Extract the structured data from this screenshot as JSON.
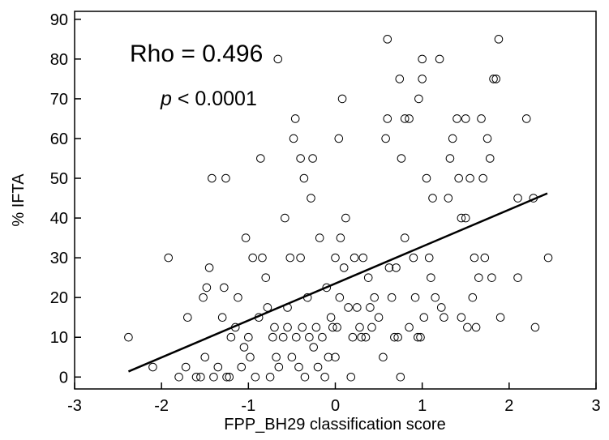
{
  "chart_data": {
    "type": "scatter",
    "xlabel": "FPP_BH29 classification score",
    "ylabel": "% IFTA",
    "xlim": [
      -3,
      3
    ],
    "ylim": [
      -3,
      92
    ],
    "xticks": [
      -3,
      -2,
      -1,
      0,
      1,
      2,
      3
    ],
    "yticks": [
      0,
      10,
      20,
      30,
      40,
      50,
      60,
      70,
      80,
      90
    ],
    "xtick_labels": [
      "-3",
      "-2",
      "-1",
      "0",
      "1",
      "2",
      "3"
    ],
    "ytick_labels": [
      "0",
      "10",
      "20",
      "30",
      "40",
      "50",
      "60",
      "70",
      "80",
      "90"
    ],
    "grid": false,
    "annotations": {
      "rho": "Rho = 0.496",
      "p_symbol": "p",
      "p_value": " < 0.0001"
    },
    "regression_line": {
      "x": [
        -2.38,
        2.44
      ],
      "y": [
        1.4,
        46.2
      ]
    },
    "points": [
      [
        -2.38,
        10
      ],
      [
        -2.1,
        2.5
      ],
      [
        -1.92,
        30
      ],
      [
        -1.8,
        0
      ],
      [
        -1.72,
        2.5
      ],
      [
        -1.7,
        15
      ],
      [
        -1.6,
        0
      ],
      [
        -1.55,
        0
      ],
      [
        -1.52,
        20
      ],
      [
        -1.5,
        5
      ],
      [
        -1.48,
        22.5
      ],
      [
        -1.42,
        50
      ],
      [
        -1.45,
        27.5
      ],
      [
        -1.4,
        0
      ],
      [
        -1.35,
        2.5
      ],
      [
        -1.3,
        15
      ],
      [
        -1.28,
        22.5
      ],
      [
        -1.26,
        50
      ],
      [
        -1.25,
        0
      ],
      [
        -1.22,
        0
      ],
      [
        -1.2,
        10
      ],
      [
        -1.15,
        12.5
      ],
      [
        -1.12,
        20
      ],
      [
        -1.08,
        2.5
      ],
      [
        -1.05,
        7.5
      ],
      [
        -1.03,
        35
      ],
      [
        -1.0,
        10
      ],
      [
        -0.98,
        5
      ],
      [
        -0.95,
        30
      ],
      [
        -0.92,
        0
      ],
      [
        -0.88,
        15
      ],
      [
        -0.86,
        55
      ],
      [
        -0.84,
        30
      ],
      [
        -0.8,
        25
      ],
      [
        -0.78,
        17.5
      ],
      [
        -0.75,
        0
      ],
      [
        -0.72,
        10
      ],
      [
        -0.7,
        12.5
      ],
      [
        -0.68,
        5
      ],
      [
        -0.66,
        80
      ],
      [
        -0.65,
        2.5
      ],
      [
        -0.6,
        10
      ],
      [
        -0.58,
        40
      ],
      [
        -0.55,
        12.5
      ],
      [
        -0.55,
        17.5
      ],
      [
        -0.52,
        30
      ],
      [
        -0.5,
        5
      ],
      [
        -0.48,
        60
      ],
      [
        -0.46,
        65
      ],
      [
        -0.45,
        10
      ],
      [
        -0.42,
        2.5
      ],
      [
        -0.4,
        55
      ],
      [
        -0.4,
        30
      ],
      [
        -0.38,
        12.5
      ],
      [
        -0.36,
        50
      ],
      [
        -0.35,
        0
      ],
      [
        -0.32,
        20
      ],
      [
        -0.3,
        10
      ],
      [
        -0.28,
        45
      ],
      [
        -0.26,
        55
      ],
      [
        -0.25,
        7.5
      ],
      [
        -0.22,
        12.5
      ],
      [
        -0.2,
        2.5
      ],
      [
        -0.18,
        35
      ],
      [
        -0.15,
        10
      ],
      [
        -0.12,
        0
      ],
      [
        -0.1,
        22.5
      ],
      [
        -0.08,
        5
      ],
      [
        -0.05,
        15
      ],
      [
        -0.03,
        12.5
      ],
      [
        0.0,
        30
      ],
      [
        0.0,
        5
      ],
      [
        0.02,
        12.5
      ],
      [
        0.04,
        60
      ],
      [
        0.05,
        20
      ],
      [
        0.06,
        35
      ],
      [
        0.08,
        70
      ],
      [
        0.1,
        27.5
      ],
      [
        0.12,
        40
      ],
      [
        0.15,
        17.5
      ],
      [
        0.18,
        0
      ],
      [
        0.2,
        10
      ],
      [
        0.22,
        30
      ],
      [
        0.25,
        17.5
      ],
      [
        0.28,
        12.5
      ],
      [
        0.3,
        10
      ],
      [
        0.32,
        30
      ],
      [
        0.35,
        10
      ],
      [
        0.38,
        25
      ],
      [
        0.4,
        17.5
      ],
      [
        0.42,
        12.5
      ],
      [
        0.45,
        20
      ],
      [
        0.5,
        15
      ],
      [
        0.55,
        5
      ],
      [
        0.58,
        60
      ],
      [
        0.6,
        85
      ],
      [
        0.6,
        65
      ],
      [
        0.62,
        27.5
      ],
      [
        0.65,
        20
      ],
      [
        0.68,
        10
      ],
      [
        0.7,
        27.5
      ],
      [
        0.72,
        10
      ],
      [
        0.74,
        75
      ],
      [
        0.75,
        0
      ],
      [
        0.76,
        55
      ],
      [
        0.8,
        65
      ],
      [
        0.8,
        35
      ],
      [
        0.85,
        65
      ],
      [
        0.85,
        12.5
      ],
      [
        0.9,
        30
      ],
      [
        0.92,
        20
      ],
      [
        0.95,
        10
      ],
      [
        0.96,
        70
      ],
      [
        0.98,
        10
      ],
      [
        1.0,
        80
      ],
      [
        1.0,
        75
      ],
      [
        1.02,
        15
      ],
      [
        1.05,
        50
      ],
      [
        1.08,
        30
      ],
      [
        1.1,
        25
      ],
      [
        1.12,
        45
      ],
      [
        1.15,
        20
      ],
      [
        1.2,
        80
      ],
      [
        1.22,
        17.5
      ],
      [
        1.25,
        15
      ],
      [
        1.3,
        45
      ],
      [
        1.32,
        55
      ],
      [
        1.35,
        60
      ],
      [
        1.4,
        65
      ],
      [
        1.42,
        50
      ],
      [
        1.45,
        40
      ],
      [
        1.45,
        15
      ],
      [
        1.5,
        65
      ],
      [
        1.5,
        40
      ],
      [
        1.52,
        12.5
      ],
      [
        1.55,
        50
      ],
      [
        1.58,
        20
      ],
      [
        1.6,
        30
      ],
      [
        1.62,
        12.5
      ],
      [
        1.65,
        25
      ],
      [
        1.68,
        65
      ],
      [
        1.7,
        50
      ],
      [
        1.72,
        30
      ],
      [
        1.75,
        60
      ],
      [
        1.78,
        55
      ],
      [
        1.8,
        25
      ],
      [
        1.82,
        75
      ],
      [
        1.85,
        75
      ],
      [
        1.88,
        85
      ],
      [
        1.9,
        15
      ],
      [
        2.1,
        25
      ],
      [
        2.1,
        45
      ],
      [
        2.2,
        65
      ],
      [
        2.28,
        45
      ],
      [
        2.3,
        12.5
      ],
      [
        2.45,
        30
      ]
    ]
  }
}
